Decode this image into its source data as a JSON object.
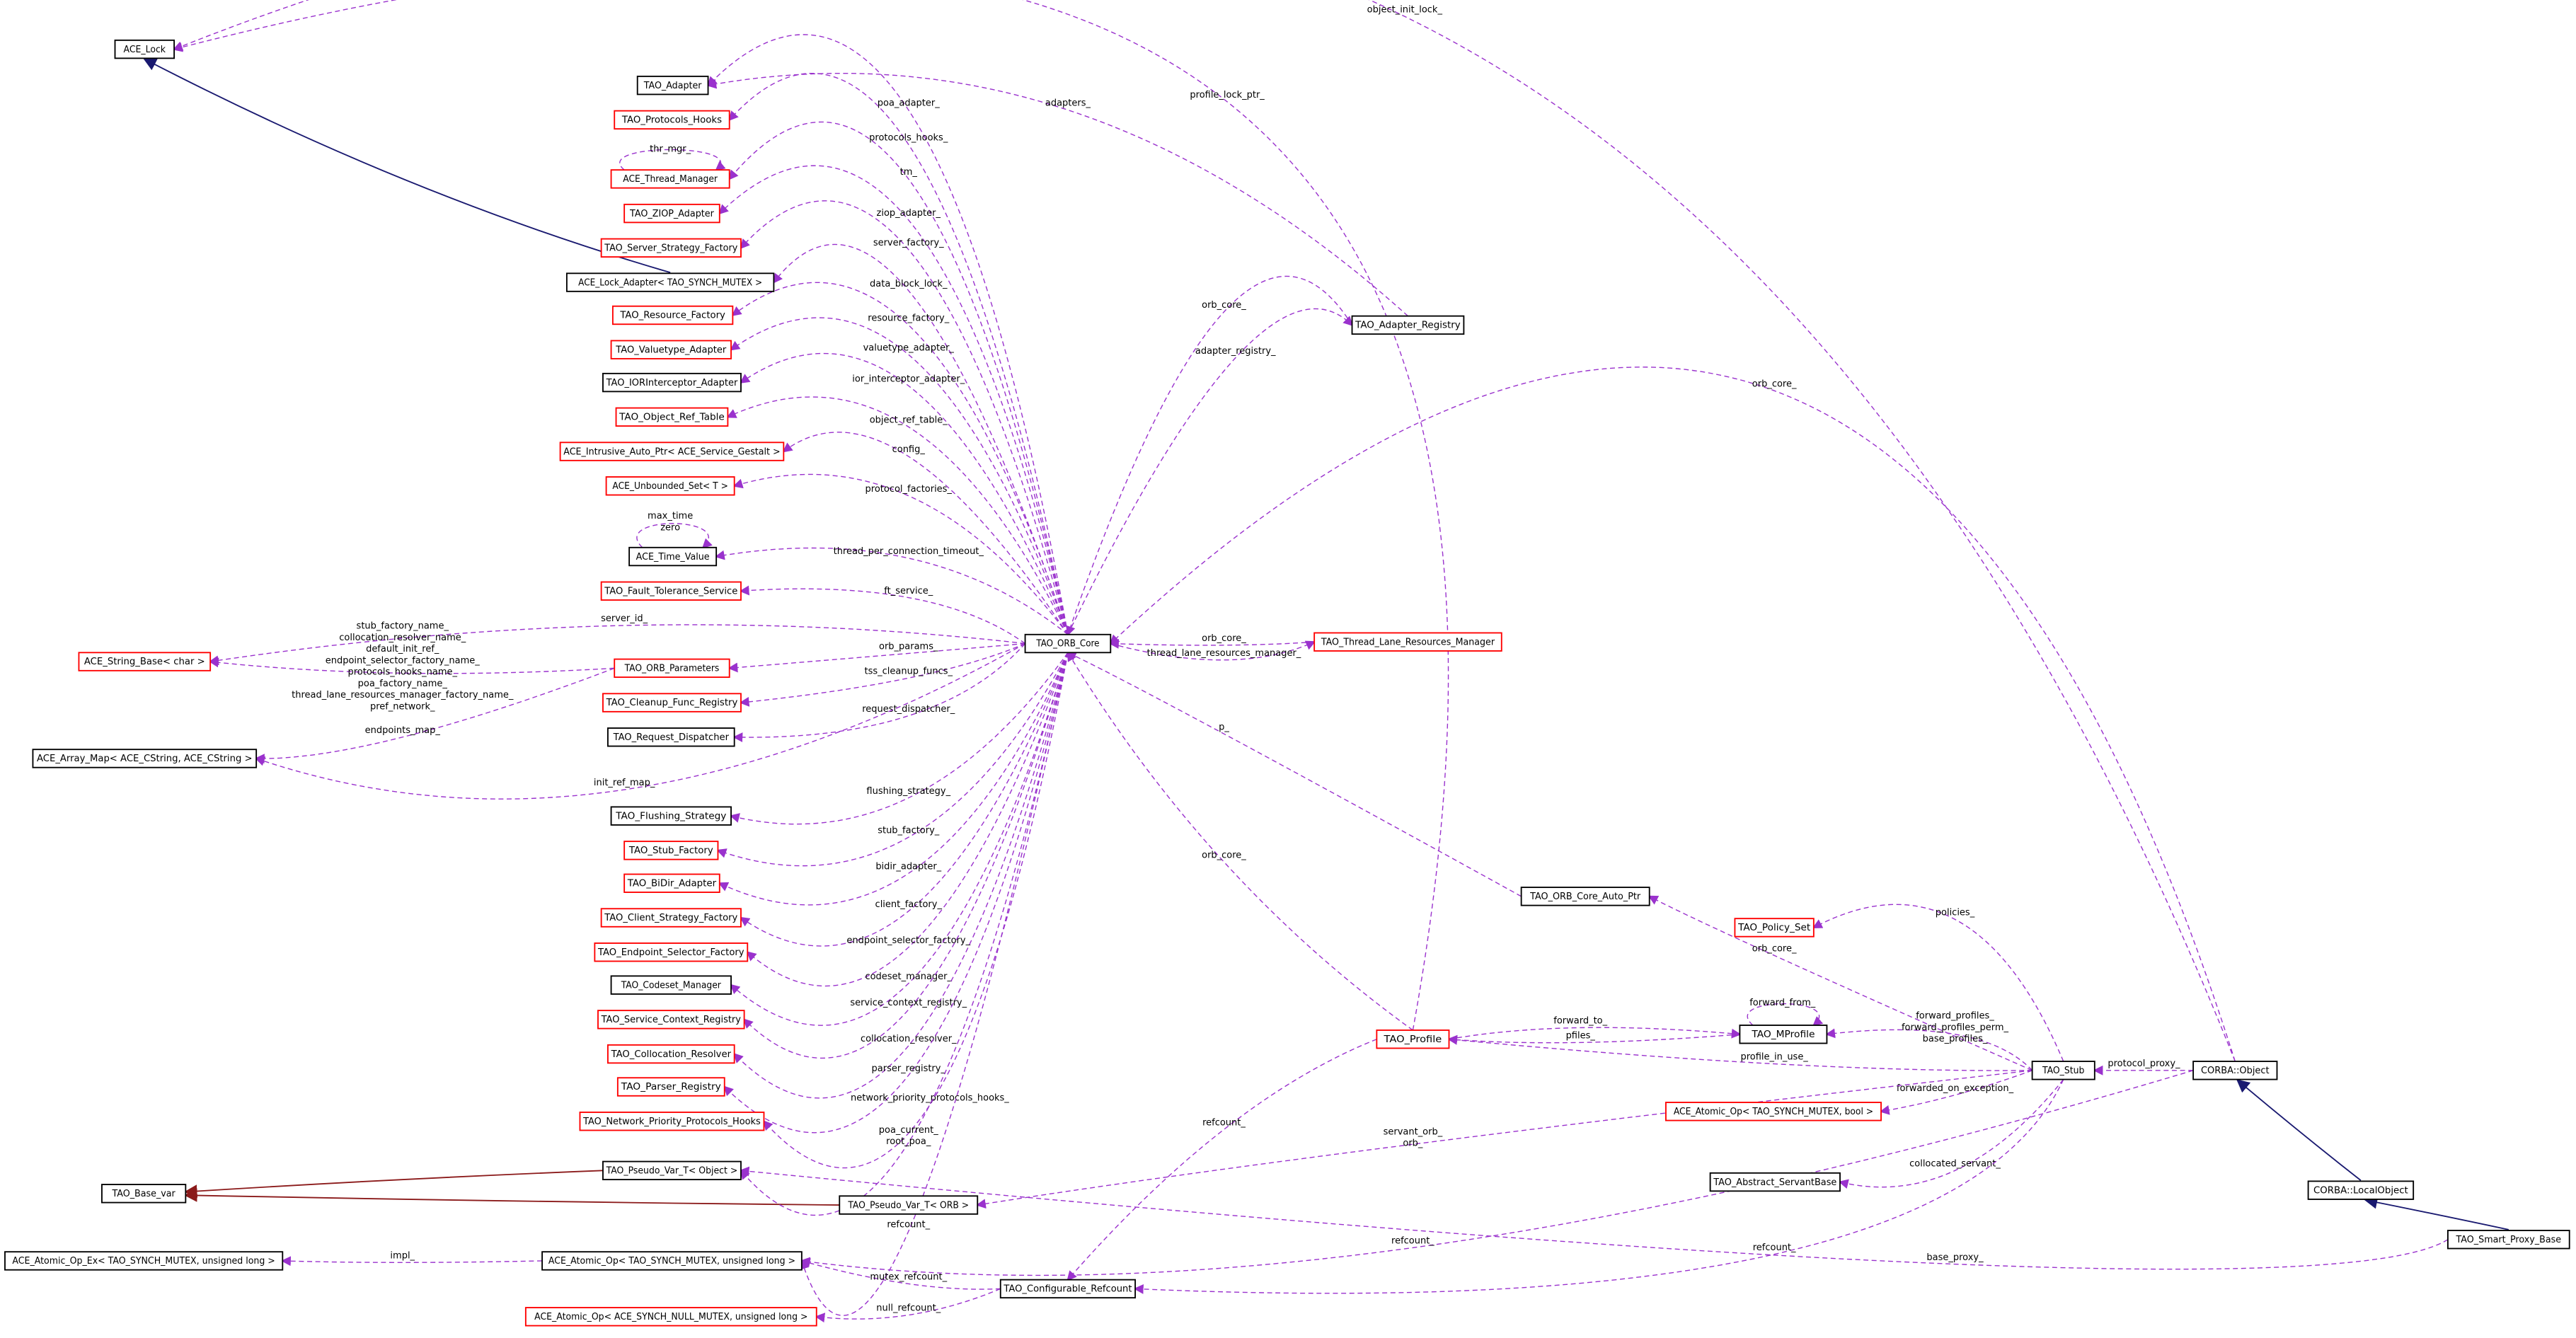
{
  "nodes": [
    {
      "label": "ACE_Lock"
    },
    {
      "label": "TAO_Adapter"
    },
    {
      "label": "TAO_Protocols_Hooks"
    },
    {
      "label": "ACE_Thread_Manager"
    },
    {
      "label": "TAO_ZIOP_Adapter"
    },
    {
      "label": "TAO_Server_Strategy_Factory"
    },
    {
      "label": "ACE_Lock_Adapter< TAO_SYNCH_MUTEX >"
    },
    {
      "label": "TAO_Resource_Factory"
    },
    {
      "label": "TAO_Valuetype_Adapter"
    },
    {
      "label": "TAO_IORInterceptor_Adapter"
    },
    {
      "label": "TAO_Object_Ref_Table"
    },
    {
      "label": "ACE_Intrusive_Auto_Ptr< ACE_Service_Gestalt >"
    },
    {
      "label": "ACE_Unbounded_Set< T >"
    },
    {
      "label": "ACE_Time_Value"
    },
    {
      "label": "TAO_Fault_Tolerance_Service"
    },
    {
      "label": "ACE_String_Base< char >"
    },
    {
      "label": "TAO_ORB_Parameters"
    },
    {
      "label": "TAO_Cleanup_Func_Registry"
    },
    {
      "label": "TAO_Request_Dispatcher"
    },
    {
      "label": "ACE_Array_Map< ACE_CString, ACE_CString >"
    },
    {
      "label": "TAO_Flushing_Strategy"
    },
    {
      "label": "TAO_Stub_Factory"
    },
    {
      "label": "TAO_BiDir_Adapter"
    },
    {
      "label": "TAO_Client_Strategy_Factory"
    },
    {
      "label": "TAO_Endpoint_Selector_Factory"
    },
    {
      "label": "TAO_Codeset_Manager"
    },
    {
      "label": "TAO_Service_Context_Registry"
    },
    {
      "label": "TAO_Collocation_Resolver"
    },
    {
      "label": "TAO_Parser_Registry"
    },
    {
      "label": "TAO_Network_Priority_Protocols_Hooks"
    },
    {
      "label": "TAO_Pseudo_Var_T< Object >"
    },
    {
      "label": "TAO_Base_var"
    },
    {
      "label": "TAO_Pseudo_Var_T< ORB >"
    },
    {
      "label": "ACE_Atomic_Op_Ex< TAO_SYNCH_MUTEX, unsigned long >"
    },
    {
      "label": "ACE_Atomic_Op< TAO_SYNCH_MUTEX, unsigned long >"
    },
    {
      "label": "ACE_Atomic_Op< ACE_SYNCH_NULL_MUTEX, unsigned long >"
    },
    {
      "label": "TAO_Configurable_Refcount"
    },
    {
      "label": "TAO_ORB_Core"
    },
    {
      "label": "TAO_Adapter_Registry"
    },
    {
      "label": "TAO_Thread_Lane_Resources_Manager"
    },
    {
      "label": "TAO_ORB_Core_Auto_Ptr"
    },
    {
      "label": "TAO_Policy_Set"
    },
    {
      "label": "TAO_MProfile"
    },
    {
      "label": "TAO_Profile"
    },
    {
      "label": "TAO_Stub"
    },
    {
      "label": "ACE_Atomic_Op< TAO_SYNCH_MUTEX, bool >"
    },
    {
      "label": "TAO_Abstract_ServantBase"
    },
    {
      "label": "CORBA::Object"
    },
    {
      "label": "CORBA::LocalObject"
    },
    {
      "label": "TAO_Smart_Proxy_Base"
    }
  ],
  "edges": [
    {
      "labels": [
        "object_init_lock_"
      ]
    },
    {
      "labels": [
        "profile_lock_ptr_"
      ]
    },
    {
      "labels": [
        "adapters_"
      ]
    },
    {
      "labels": [
        "poa_adapter_"
      ]
    },
    {
      "labels": [
        "protocols_hooks_"
      ]
    },
    {
      "labels": [
        "thr_mgr_"
      ]
    },
    {
      "labels": [
        "tm_"
      ]
    },
    {
      "labels": [
        "ziop_adapter_"
      ]
    },
    {
      "labels": [
        "server_factory_"
      ]
    },
    {
      "labels": [
        "data_block_lock_"
      ]
    },
    {
      "labels": [
        "resource_factory_"
      ]
    },
    {
      "labels": [
        "valuetype_adapter_"
      ]
    },
    {
      "labels": [
        "ior_interceptor_adapter_"
      ]
    },
    {
      "labels": [
        "object_ref_table_"
      ]
    },
    {
      "labels": [
        "config_"
      ]
    },
    {
      "labels": [
        "protocol_factories_"
      ]
    },
    {
      "labels": [
        "max_time",
        "zero"
      ]
    },
    {
      "labels": [
        "thread_per_connection_timeout_"
      ]
    },
    {
      "labels": [
        "ft_service_"
      ]
    },
    {
      "labels": [
        "server_id_"
      ]
    },
    {
      "labels": [
        "orb_params_"
      ]
    },
    {
      "labels": [
        "stub_factory_name_",
        "collocation_resolver_name_",
        "default_init_ref_",
        "endpoint_selector_factory_name_",
        "protocols_hooks_name_",
        "poa_factory_name_",
        "thread_lane_resources_manager_factory_name_",
        "pref_network_"
      ]
    },
    {
      "labels": [
        "tss_cleanup_funcs_"
      ]
    },
    {
      "labels": [
        "endpoints_map_"
      ]
    },
    {
      "labels": [
        "request_dispatcher_"
      ]
    },
    {
      "labels": [
        "init_ref_map_"
      ]
    },
    {
      "labels": [
        "flushing_strategy_"
      ]
    },
    {
      "labels": [
        "stub_factory_"
      ]
    },
    {
      "labels": [
        "bidir_adapter_"
      ]
    },
    {
      "labels": [
        "client_factory_"
      ]
    },
    {
      "labels": [
        "endpoint_selector_factory_"
      ]
    },
    {
      "labels": [
        "codeset_manager_"
      ]
    },
    {
      "labels": [
        "service_context_registry_"
      ]
    },
    {
      "labels": [
        "collocation_resolver_"
      ]
    },
    {
      "labels": [
        "parser_registry_"
      ]
    },
    {
      "labels": [
        "network_priority_protocols_hooks_"
      ]
    },
    {
      "labels": [
        "poa_current_",
        "root_poa_"
      ]
    },
    {
      "labels": [
        "refcount_"
      ]
    },
    {
      "labels": [
        "impl_"
      ]
    },
    {
      "labels": [
        "mutex_refcount_"
      ]
    },
    {
      "labels": [
        "null_refcount_"
      ]
    },
    {
      "labels": [
        "orb_core_"
      ]
    },
    {
      "labels": [
        "adapter_registry_"
      ]
    },
    {
      "labels": [
        "orb_core_"
      ]
    },
    {
      "labels": [
        "orb_core_"
      ]
    },
    {
      "labels": [
        "thread_lane_resources_manager_"
      ]
    },
    {
      "labels": [
        "p_"
      ]
    },
    {
      "labels": [
        "orb_core_"
      ]
    },
    {
      "labels": [
        "refcount_"
      ]
    },
    {
      "labels": [
        "policies_"
      ]
    },
    {
      "labels": [
        "orb_core_"
      ]
    },
    {
      "labels": [
        "forward_from_"
      ]
    },
    {
      "labels": [
        "forward_to_"
      ]
    },
    {
      "labels": [
        "pfiles_"
      ]
    },
    {
      "labels": [
        "forward_profiles_",
        "forward_profiles_perm_",
        "base_profiles_"
      ]
    },
    {
      "labels": [
        "profile_in_use_"
      ]
    },
    {
      "labels": [
        "protocol_proxy_"
      ]
    },
    {
      "labels": [
        "forwarded_on_exception_"
      ]
    },
    {
      "labels": [
        "collocated_servant_"
      ]
    },
    {
      "labels": [
        "servant_orb_",
        "orb_"
      ]
    },
    {
      "labels": [
        "refcount_"
      ]
    },
    {
      "labels": [
        "refcount_"
      ]
    },
    {
      "labels": [
        "base_proxy_"
      ]
    }
  ]
}
